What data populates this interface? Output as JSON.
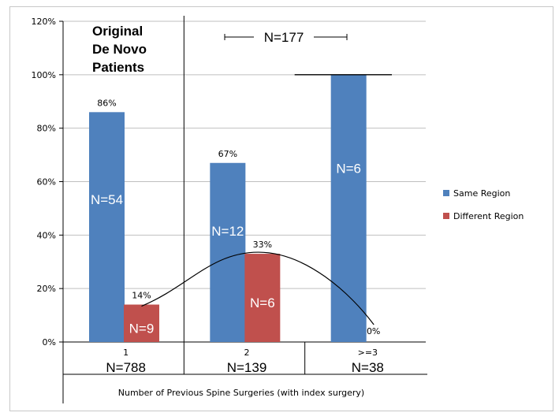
{
  "chart_data": {
    "type": "bar",
    "title_lines": [
      "Original",
      "De Novo",
      "Patients"
    ],
    "xlabel": "Number of Previous Spine Surgeries (with index surgery)",
    "ylabel": "",
    "ylim": [
      0,
      120
    ],
    "yticks": [
      0,
      20,
      40,
      60,
      80,
      100,
      120
    ],
    "ytick_suffix": "%",
    "grid": true,
    "legend_position": "right",
    "categories": [
      "1",
      "2",
      ">=3"
    ],
    "category_counts": [
      "N=788",
      "N=139",
      "N=38"
    ],
    "series": [
      {
        "name": "Same Region",
        "color": "#4f81bd",
        "values": [
          86,
          67,
          100
        ],
        "value_labels": [
          "86%",
          "67%",
          ""
        ],
        "in_bar_labels": [
          "N=54",
          "N=12",
          "N=6"
        ]
      },
      {
        "name": "Different Region",
        "color": "#c0504d",
        "values": [
          14,
          33,
          0
        ],
        "value_labels": [
          "14%",
          "33%",
          "0%"
        ],
        "in_bar_labels": [
          "N=9",
          "N=6",
          ""
        ]
      }
    ],
    "bracket_annotation": "N=177",
    "trend_curve_series": "Different Region"
  }
}
